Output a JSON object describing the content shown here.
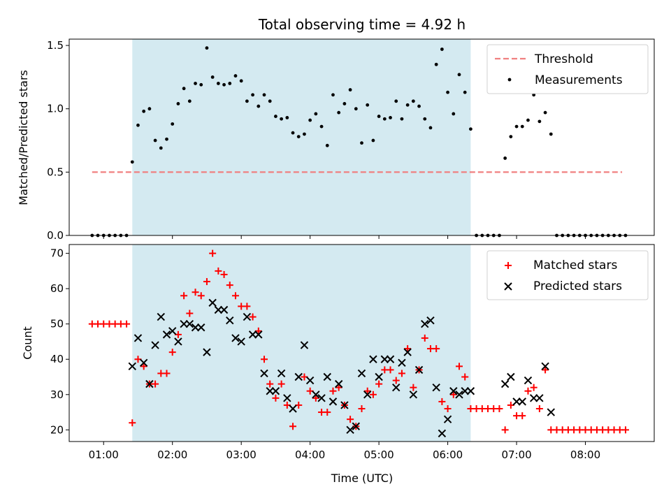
{
  "chart_data": [
    {
      "type": "scatter",
      "title": "Total observing time = 4.92 h",
      "ylabel": "Matched/Predicted stars",
      "xlim": [
        "00:30",
        "09:00"
      ],
      "ylim": [
        0,
        1.55
      ],
      "yticks": [
        "0.0",
        "0.5",
        "1.0",
        "1.5"
      ],
      "yticks_values": [
        0,
        0.5,
        1.0,
        1.5
      ],
      "observing_window": [
        "01:25",
        "06:20"
      ],
      "observing_window_color": "#d4eaf1",
      "legend_position": "upper-right",
      "threshold": {
        "name": "Threshold",
        "value": 0.5,
        "x_range": [
          "00:50",
          "08:32"
        ],
        "color": "#f08080",
        "style": "dashed"
      },
      "series": [
        {
          "name": "Measurements",
          "color": "#000000",
          "marker": "dot",
          "points": [
            [
              "00:50",
              0
            ],
            [
              "00:55",
              0
            ],
            [
              "01:00",
              0
            ],
            [
              "01:05",
              0
            ],
            [
              "01:10",
              0
            ],
            [
              "01:15",
              0
            ],
            [
              "01:20",
              0
            ],
            [
              "01:25",
              0.58
            ],
            [
              "01:30",
              0.87
            ],
            [
              "01:35",
              0.98
            ],
            [
              "01:40",
              1.0
            ],
            [
              "01:45",
              0.75
            ],
            [
              "01:50",
              0.69
            ],
            [
              "01:55",
              0.76
            ],
            [
              "02:00",
              0.88
            ],
            [
              "02:05",
              1.04
            ],
            [
              "02:10",
              1.16
            ],
            [
              "02:15",
              1.06
            ],
            [
              "02:20",
              1.2
            ],
            [
              "02:25",
              1.19
            ],
            [
              "02:30",
              1.48
            ],
            [
              "02:35",
              1.25
            ],
            [
              "02:40",
              1.2
            ],
            [
              "02:45",
              1.19
            ],
            [
              "02:50",
              1.2
            ],
            [
              "02:55",
              1.26
            ],
            [
              "03:00",
              1.22
            ],
            [
              "03:05",
              1.06
            ],
            [
              "03:10",
              1.11
            ],
            [
              "03:15",
              1.02
            ],
            [
              "03:20",
              1.11
            ],
            [
              "03:25",
              1.06
            ],
            [
              "03:30",
              0.94
            ],
            [
              "03:35",
              0.92
            ],
            [
              "03:40",
              0.93
            ],
            [
              "03:45",
              0.81
            ],
            [
              "03:50",
              0.78
            ],
            [
              "03:55",
              0.8
            ],
            [
              "04:00",
              0.91
            ],
            [
              "04:05",
              0.96
            ],
            [
              "04:10",
              0.86
            ],
            [
              "04:15",
              0.71
            ],
            [
              "04:20",
              1.11
            ],
            [
              "04:25",
              0.97
            ],
            [
              "04:30",
              1.04
            ],
            [
              "04:35",
              1.15
            ],
            [
              "04:40",
              1.0
            ],
            [
              "04:45",
              0.73
            ],
            [
              "04:50",
              1.03
            ],
            [
              "04:55",
              0.75
            ],
            [
              "05:00",
              0.94
            ],
            [
              "05:05",
              0.92
            ],
            [
              "05:10",
              0.93
            ],
            [
              "05:15",
              1.06
            ],
            [
              "05:20",
              0.92
            ],
            [
              "05:25",
              1.03
            ],
            [
              "05:30",
              1.06
            ],
            [
              "05:35",
              1.02
            ],
            [
              "05:40",
              0.92
            ],
            [
              "05:45",
              0.85
            ],
            [
              "05:50",
              1.35
            ],
            [
              "05:55",
              1.47
            ],
            [
              "06:00",
              1.13
            ],
            [
              "06:05",
              0.96
            ],
            [
              "06:10",
              1.27
            ],
            [
              "06:15",
              1.13
            ],
            [
              "06:20",
              0.84
            ],
            [
              "06:25",
              0
            ],
            [
              "06:30",
              0
            ],
            [
              "06:35",
              0
            ],
            [
              "06:40",
              0
            ],
            [
              "06:45",
              0
            ],
            [
              "06:50",
              0.61
            ],
            [
              "06:55",
              0.78
            ],
            [
              "07:00",
              0.86
            ],
            [
              "07:05",
              0.86
            ],
            [
              "07:10",
              0.91
            ],
            [
              "07:15",
              1.11
            ],
            [
              "07:20",
              0.9
            ],
            [
              "07:25",
              0.97
            ],
            [
              "07:30",
              0.8
            ],
            [
              "07:35",
              0
            ],
            [
              "07:40",
              0
            ],
            [
              "07:45",
              0
            ],
            [
              "07:50",
              0
            ],
            [
              "07:55",
              0
            ],
            [
              "08:00",
              0
            ],
            [
              "08:05",
              0
            ],
            [
              "08:10",
              0
            ],
            [
              "08:15",
              0
            ],
            [
              "08:20",
              0
            ],
            [
              "08:25",
              0
            ],
            [
              "08:30",
              0
            ],
            [
              "08:35",
              0
            ]
          ]
        }
      ]
    },
    {
      "type": "scatter",
      "xlabel": "Time (UTC)",
      "ylabel": "Count",
      "xlim": [
        "00:30",
        "09:00"
      ],
      "ylim": [
        16.7,
        72.5
      ],
      "xticks": [
        "01:00",
        "02:00",
        "03:00",
        "04:00",
        "05:00",
        "06:00",
        "07:00",
        "08:00"
      ],
      "yticks": [
        "20",
        "30",
        "40",
        "50",
        "60",
        "70"
      ],
      "yticks_values": [
        20,
        30,
        40,
        50,
        60,
        70
      ],
      "observing_window": [
        "01:25",
        "06:20"
      ],
      "observing_window_color": "#d4eaf1",
      "legend_position": "upper-right",
      "series": [
        {
          "name": "Matched stars",
          "color": "#ff0000",
          "marker": "plus",
          "points": [
            [
              "00:50",
              50
            ],
            [
              "00:55",
              50
            ],
            [
              "01:00",
              50
            ],
            [
              "01:05",
              50
            ],
            [
              "01:10",
              50
            ],
            [
              "01:15",
              50
            ],
            [
              "01:20",
              50
            ],
            [
              "01:25",
              22
            ],
            [
              "01:30",
              40
            ],
            [
              "01:35",
              38
            ],
            [
              "01:40",
              33
            ],
            [
              "01:45",
              33
            ],
            [
              "01:50",
              36
            ],
            [
              "01:55",
              36
            ],
            [
              "02:00",
              42
            ],
            [
              "02:05",
              47
            ],
            [
              "02:10",
              58
            ],
            [
              "02:15",
              53
            ],
            [
              "02:20",
              59
            ],
            [
              "02:25",
              58
            ],
            [
              "02:30",
              62
            ],
            [
              "02:35",
              70
            ],
            [
              "02:40",
              65
            ],
            [
              "02:45",
              64
            ],
            [
              "02:50",
              61
            ],
            [
              "02:55",
              58
            ],
            [
              "03:00",
              55
            ],
            [
              "03:05",
              55
            ],
            [
              "03:10",
              52
            ],
            [
              "03:15",
              48
            ],
            [
              "03:20",
              40
            ],
            [
              "03:25",
              33
            ],
            [
              "03:30",
              29
            ],
            [
              "03:35",
              33
            ],
            [
              "03:40",
              27
            ],
            [
              "03:45",
              21
            ],
            [
              "03:50",
              27
            ],
            [
              "03:55",
              35
            ],
            [
              "04:00",
              31
            ],
            [
              "04:05",
              29
            ],
            [
              "04:10",
              25
            ],
            [
              "04:15",
              25
            ],
            [
              "04:20",
              31
            ],
            [
              "04:25",
              32
            ],
            [
              "04:30",
              27
            ],
            [
              "04:35",
              23
            ],
            [
              "04:40",
              21
            ],
            [
              "04:45",
              26
            ],
            [
              "04:50",
              31
            ],
            [
              "04:55",
              30
            ],
            [
              "05:00",
              33
            ],
            [
              "05:05",
              37
            ],
            [
              "05:10",
              37
            ],
            [
              "05:15",
              34
            ],
            [
              "05:20",
              36
            ],
            [
              "05:25",
              43
            ],
            [
              "05:30",
              32
            ],
            [
              "05:35",
              37
            ],
            [
              "05:40",
              46
            ],
            [
              "05:45",
              43
            ],
            [
              "05:50",
              43
            ],
            [
              "05:55",
              28
            ],
            [
              "06:00",
              26
            ],
            [
              "06:05",
              30
            ],
            [
              "06:10",
              38
            ],
            [
              "06:15",
              35
            ],
            [
              "06:20",
              26
            ],
            [
              "06:25",
              26
            ],
            [
              "06:30",
              26
            ],
            [
              "06:35",
              26
            ],
            [
              "06:40",
              26
            ],
            [
              "06:45",
              26
            ],
            [
              "06:50",
              20
            ],
            [
              "06:55",
              27
            ],
            [
              "07:00",
              24
            ],
            [
              "07:05",
              24
            ],
            [
              "07:10",
              31
            ],
            [
              "07:15",
              32
            ],
            [
              "07:20",
              26
            ],
            [
              "07:25",
              37
            ],
            [
              "07:30",
              20
            ],
            [
              "07:35",
              20
            ],
            [
              "07:40",
              20
            ],
            [
              "07:45",
              20
            ],
            [
              "07:50",
              20
            ],
            [
              "07:55",
              20
            ],
            [
              "08:00",
              20
            ],
            [
              "08:05",
              20
            ],
            [
              "08:10",
              20
            ],
            [
              "08:15",
              20
            ],
            [
              "08:20",
              20
            ],
            [
              "08:25",
              20
            ],
            [
              "08:30",
              20
            ],
            [
              "08:35",
              20
            ]
          ]
        },
        {
          "name": "Predicted stars",
          "color": "#000000",
          "marker": "x",
          "points": [
            [
              "01:25",
              38
            ],
            [
              "01:30",
              46
            ],
            [
              "01:35",
              39
            ],
            [
              "01:40",
              33
            ],
            [
              "01:45",
              44
            ],
            [
              "01:50",
              52
            ],
            [
              "01:55",
              47
            ],
            [
              "02:00",
              48
            ],
            [
              "02:05",
              45
            ],
            [
              "02:10",
              50
            ],
            [
              "02:15",
              50
            ],
            [
              "02:20",
              49
            ],
            [
              "02:25",
              49
            ],
            [
              "02:30",
              42
            ],
            [
              "02:35",
              56
            ],
            [
              "02:40",
              54
            ],
            [
              "02:45",
              54
            ],
            [
              "02:50",
              51
            ],
            [
              "02:55",
              46
            ],
            [
              "03:00",
              45
            ],
            [
              "03:05",
              52
            ],
            [
              "03:10",
              47
            ],
            [
              "03:15",
              47
            ],
            [
              "03:20",
              36
            ],
            [
              "03:25",
              31
            ],
            [
              "03:30",
              31
            ],
            [
              "03:35",
              36
            ],
            [
              "03:40",
              29
            ],
            [
              "03:45",
              26
            ],
            [
              "03:50",
              35
            ],
            [
              "03:55",
              44
            ],
            [
              "04:00",
              34
            ],
            [
              "04:05",
              30
            ],
            [
              "04:10",
              29
            ],
            [
              "04:15",
              35
            ],
            [
              "04:20",
              28
            ],
            [
              "04:25",
              33
            ],
            [
              "04:30",
              27
            ],
            [
              "04:35",
              20
            ],
            [
              "04:40",
              21
            ],
            [
              "04:45",
              36
            ],
            [
              "04:50",
              30
            ],
            [
              "04:55",
              40
            ],
            [
              "05:00",
              35
            ],
            [
              "05:05",
              40
            ],
            [
              "05:10",
              40
            ],
            [
              "05:15",
              32
            ],
            [
              "05:20",
              39
            ],
            [
              "05:25",
              42
            ],
            [
              "05:30",
              30
            ],
            [
              "05:35",
              37
            ],
            [
              "05:40",
              50
            ],
            [
              "05:45",
              51
            ],
            [
              "05:50",
              32
            ],
            [
              "05:55",
              19
            ],
            [
              "06:00",
              23
            ],
            [
              "06:05",
              31
            ],
            [
              "06:10",
              30
            ],
            [
              "06:15",
              31
            ],
            [
              "06:20",
              31
            ],
            [
              "06:50",
              33
            ],
            [
              "06:55",
              35
            ],
            [
              "07:00",
              28
            ],
            [
              "07:05",
              28
            ],
            [
              "07:10",
              34
            ],
            [
              "07:15",
              29
            ],
            [
              "07:20",
              29
            ],
            [
              "07:25",
              38
            ],
            [
              "07:30",
              25
            ]
          ]
        }
      ]
    }
  ]
}
